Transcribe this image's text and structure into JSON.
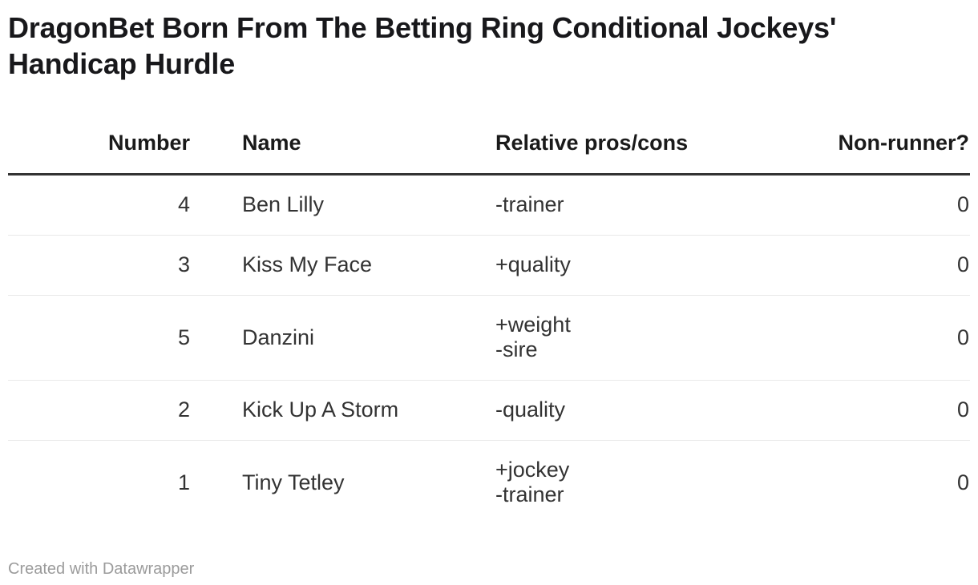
{
  "header": {
    "title": "DragonBet Born From The Betting Ring Conditional Jockeys' Handicap Hurdle"
  },
  "table": {
    "columns": [
      {
        "label": "Number",
        "align": "right"
      },
      {
        "label": "Name",
        "align": "left"
      },
      {
        "label": "Relative pros/cons",
        "align": "left"
      },
      {
        "label": "Non-runner?",
        "align": "right"
      }
    ],
    "rows": [
      {
        "number": "4",
        "name": "Ben Lilly",
        "pros_cons": "-trainer",
        "non_runner": "0"
      },
      {
        "number": "3",
        "name": "Kiss My Face",
        "pros_cons": "+quality",
        "non_runner": "0"
      },
      {
        "number": "5",
        "name": "Danzini",
        "pros_cons": "+weight\n-sire",
        "non_runner": "0"
      },
      {
        "number": "2",
        "name": "Kick Up A Storm",
        "pros_cons": "-quality",
        "non_runner": "0"
      },
      {
        "number": "1",
        "name": "Tiny Tetley",
        "pros_cons": "+jockey\n-trainer",
        "non_runner": "0"
      }
    ]
  },
  "footer": {
    "credit": "Created with Datawrapper"
  },
  "colors": {
    "background": "#ffffff",
    "title_text": "#18181b",
    "body_text": "#333333",
    "header_rule": "#333333",
    "row_rule": "#e9e9e9",
    "footer_text": "#9b9b9b"
  },
  "chart_data": {
    "type": "table",
    "title": "DragonBet Born From The Betting Ring Conditional Jockeys' Handicap Hurdle",
    "columns": [
      "Number",
      "Name",
      "Relative pros/cons",
      "Non-runner?"
    ],
    "column_alignments": [
      "right",
      "left",
      "left",
      "right"
    ],
    "rows": [
      [
        4,
        "Ben Lilly",
        "-trainer",
        0
      ],
      [
        3,
        "Kiss My Face",
        "+quality",
        0
      ],
      [
        5,
        "Danzini",
        "+weight\n-sire",
        0
      ],
      [
        2,
        "Kick Up A Storm",
        "-quality",
        0
      ],
      [
        1,
        "Tiny Tetley",
        "+jockey\n-trainer",
        0
      ]
    ],
    "footer": "Created with Datawrapper"
  }
}
